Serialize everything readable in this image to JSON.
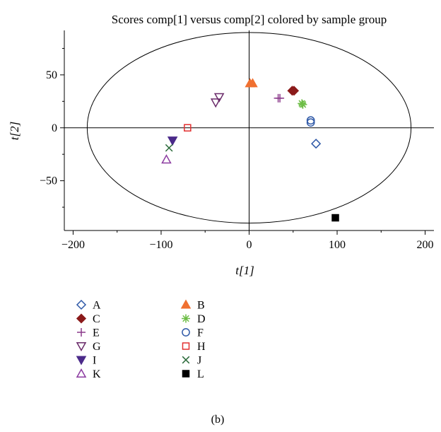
{
  "chart_data": {
    "type": "scatter",
    "title": "Scores comp[1] versus comp[2] colored by sample group",
    "xlabel": "t[1]",
    "ylabel": "t[2]",
    "xlim": [
      -210,
      210
    ],
    "ylim": [
      -97,
      92
    ],
    "xticks": [
      -200,
      -100,
      0,
      100,
      200
    ],
    "yticks": [
      -50,
      0,
      50
    ],
    "xtick_labels": [
      "−200",
      "−100",
      "0",
      "100",
      "200"
    ],
    "ytick_labels": [
      "−50",
      "0",
      "50"
    ],
    "ellipse": {
      "rx": 184,
      "ry": 90
    },
    "grid": false,
    "legend_position": "bottom",
    "caption": "(b)",
    "series": [
      {
        "name": "A",
        "marker": "diamond-open",
        "color": "#2e58a7",
        "points": [
          [
            76,
            -15
          ]
        ]
      },
      {
        "name": "B",
        "marker": "triangle-up-filled",
        "color": "#f07030",
        "points": [
          [
            1,
            42
          ],
          [
            4,
            42
          ]
        ]
      },
      {
        "name": "C",
        "marker": "diamond-filled",
        "color": "#8b1a1a",
        "points": [
          [
            49,
            35
          ],
          [
            51,
            35
          ]
        ]
      },
      {
        "name": "D",
        "marker": "asterisk",
        "color": "#6cbd45",
        "points": [
          [
            60,
            23
          ],
          [
            61,
            22
          ]
        ]
      },
      {
        "name": "E",
        "marker": "plus",
        "color": "#8b3a8b",
        "points": [
          [
            33,
            28
          ],
          [
            35,
            28
          ]
        ]
      },
      {
        "name": "F",
        "marker": "circle-open",
        "color": "#2e58a7",
        "points": [
          [
            70,
            7
          ],
          [
            70,
            5
          ]
        ]
      },
      {
        "name": "G",
        "marker": "triangle-down-open",
        "color": "#6a2a6a",
        "points": [
          [
            -38,
            24
          ],
          [
            -34,
            29
          ]
        ]
      },
      {
        "name": "H",
        "marker": "square-open",
        "color": "#e23030",
        "points": [
          [
            -70,
            0
          ]
        ]
      },
      {
        "name": "I",
        "marker": "triangle-down-filled",
        "color": "#4b2a8a",
        "points": [
          [
            -87,
            -12
          ]
        ]
      },
      {
        "name": "J",
        "marker": "x",
        "color": "#2a6a3a",
        "points": [
          [
            -91,
            -19
          ]
        ]
      },
      {
        "name": "K",
        "marker": "triangle-up-open",
        "color": "#8b3aa0",
        "points": [
          [
            -94,
            -30
          ]
        ]
      },
      {
        "name": "L",
        "marker": "square-filled",
        "color": "#000000",
        "points": [
          [
            98,
            -85
          ]
        ]
      }
    ]
  }
}
